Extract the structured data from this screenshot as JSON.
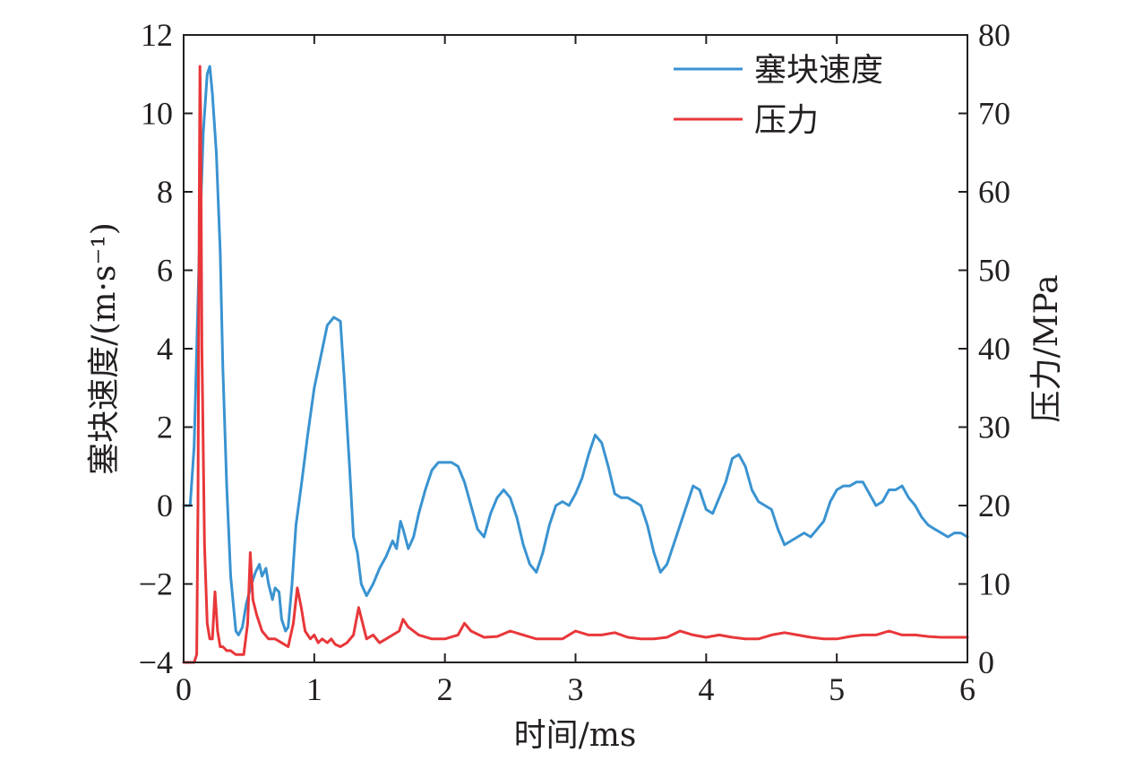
{
  "chart_data": {
    "type": "line",
    "title": "",
    "xlabel": "时间/ms",
    "ylabel_left": "塞块速度/(m·s⁻¹)",
    "ylabel_right": "压力/MPa",
    "xlim": [
      0,
      6
    ],
    "ylim_left": [
      -4,
      12
    ],
    "ylim_right": [
      0,
      80
    ],
    "x_ticks": [
      "0",
      "1",
      "2",
      "3",
      "4",
      "5",
      "6"
    ],
    "y_left_ticks": [
      "−4",
      "−2",
      "0",
      "2",
      "4",
      "6",
      "8",
      "10",
      "12"
    ],
    "y_right_ticks": [
      "0",
      "10",
      "20",
      "30",
      "40",
      "50",
      "60",
      "70",
      "80"
    ],
    "grid": false,
    "legend_position": "top-right",
    "colors": {
      "velocity": "#3a93d1",
      "pressure": "#e8373a",
      "axis": "#231f20"
    },
    "series": [
      {
        "name": "塞块速度",
        "axis": "left",
        "color": "#3a93d1",
        "x": [
          0,
          0.05,
          0.08,
          0.1,
          0.12,
          0.15,
          0.18,
          0.2,
          0.22,
          0.25,
          0.28,
          0.3,
          0.33,
          0.36,
          0.4,
          0.42,
          0.45,
          0.48,
          0.52,
          0.55,
          0.58,
          0.6,
          0.63,
          0.65,
          0.68,
          0.7,
          0.73,
          0.75,
          0.78,
          0.8,
          0.83,
          0.86,
          0.9,
          0.95,
          1.0,
          1.05,
          1.1,
          1.15,
          1.2,
          1.23,
          1.27,
          1.3,
          1.33,
          1.36,
          1.4,
          1.45,
          1.5,
          1.55,
          1.6,
          1.63,
          1.66,
          1.68,
          1.72,
          1.76,
          1.8,
          1.85,
          1.9,
          1.95,
          2.0,
          2.05,
          2.1,
          2.15,
          2.2,
          2.25,
          2.3,
          2.35,
          2.4,
          2.45,
          2.5,
          2.55,
          2.6,
          2.65,
          2.7,
          2.75,
          2.8,
          2.85,
          2.9,
          2.95,
          3.0,
          3.05,
          3.1,
          3.15,
          3.2,
          3.25,
          3.3,
          3.35,
          3.4,
          3.45,
          3.5,
          3.55,
          3.6,
          3.65,
          3.7,
          3.75,
          3.8,
          3.85,
          3.9,
          3.95,
          4.0,
          4.05,
          4.1,
          4.15,
          4.2,
          4.25,
          4.3,
          4.35,
          4.4,
          4.45,
          4.5,
          4.55,
          4.6,
          4.65,
          4.7,
          4.75,
          4.8,
          4.85,
          4.9,
          4.95,
          5.0,
          5.05,
          5.1,
          5.15,
          5.2,
          5.25,
          5.3,
          5.35,
          5.4,
          5.45,
          5.5,
          5.55,
          5.6,
          5.65,
          5.7,
          5.75,
          5.8,
          5.85,
          5.9,
          5.95,
          6.0
        ],
        "values": [
          0,
          0,
          1.5,
          4.0,
          6.5,
          9.5,
          11.0,
          11.2,
          10.5,
          9.0,
          6.5,
          3.5,
          0.5,
          -1.8,
          -3.2,
          -3.3,
          -3.1,
          -2.5,
          -2.0,
          -1.7,
          -1.5,
          -1.8,
          -1.6,
          -2.0,
          -2.4,
          -2.1,
          -2.2,
          -2.9,
          -3.2,
          -3.1,
          -2.0,
          -0.5,
          0.5,
          1.8,
          3.0,
          3.8,
          4.6,
          4.8,
          4.7,
          3.2,
          1.0,
          -0.8,
          -1.2,
          -2.0,
          -2.3,
          -2.0,
          -1.6,
          -1.3,
          -0.9,
          -1.1,
          -0.4,
          -0.6,
          -1.1,
          -0.8,
          -0.2,
          0.4,
          0.9,
          1.1,
          1.1,
          1.1,
          1.0,
          0.6,
          0.0,
          -0.6,
          -0.8,
          -0.2,
          0.2,
          0.4,
          0.2,
          -0.3,
          -1.0,
          -1.5,
          -1.7,
          -1.2,
          -0.5,
          0.0,
          0.1,
          0.0,
          0.3,
          0.7,
          1.3,
          1.8,
          1.6,
          1.0,
          0.3,
          0.2,
          0.2,
          0.1,
          0.0,
          -0.5,
          -1.2,
          -1.7,
          -1.5,
          -1.0,
          -0.5,
          0.0,
          0.5,
          0.4,
          -0.1,
          -0.2,
          0.2,
          0.6,
          1.2,
          1.3,
          1.0,
          0.4,
          0.1,
          0.0,
          -0.1,
          -0.6,
          -1.0,
          -0.9,
          -0.8,
          -0.7,
          -0.8,
          -0.6,
          -0.4,
          0.1,
          0.4,
          0.5,
          0.5,
          0.6,
          0.6,
          0.3,
          0.0,
          0.1,
          0.4,
          0.4,
          0.5,
          0.2,
          0.0,
          -0.3,
          -0.5,
          -0.6,
          -0.7,
          -0.8,
          -0.7,
          -0.7,
          -0.8
        ]
      },
      {
        "name": "压力",
        "axis": "right",
        "color": "#e8373a",
        "x": [
          0,
          0.08,
          0.1,
          0.11,
          0.12,
          0.125,
          0.13,
          0.14,
          0.16,
          0.18,
          0.2,
          0.22,
          0.24,
          0.26,
          0.28,
          0.3,
          0.33,
          0.36,
          0.4,
          0.43,
          0.46,
          0.49,
          0.51,
          0.53,
          0.56,
          0.6,
          0.65,
          0.7,
          0.75,
          0.8,
          0.84,
          0.87,
          0.9,
          0.93,
          0.97,
          1.0,
          1.03,
          1.06,
          1.1,
          1.13,
          1.16,
          1.2,
          1.25,
          1.3,
          1.34,
          1.37,
          1.4,
          1.45,
          1.5,
          1.55,
          1.6,
          1.65,
          1.68,
          1.72,
          1.8,
          1.9,
          2.0,
          2.1,
          2.15,
          2.2,
          2.3,
          2.4,
          2.5,
          2.6,
          2.7,
          2.8,
          2.9,
          3.0,
          3.1,
          3.2,
          3.3,
          3.4,
          3.5,
          3.6,
          3.7,
          3.8,
          3.9,
          4.0,
          4.1,
          4.2,
          4.3,
          4.4,
          4.5,
          4.6,
          4.7,
          4.8,
          4.9,
          5.0,
          5.1,
          5.2,
          5.3,
          5.4,
          5.5,
          5.6,
          5.7,
          5.8,
          5.9,
          6.0
        ],
        "values": [
          0,
          0,
          1,
          20,
          60,
          76,
          70,
          40,
          15,
          5,
          3,
          3,
          9,
          4,
          2,
          2,
          1.5,
          1.5,
          1,
          1,
          1,
          5,
          14,
          8,
          6,
          4,
          3,
          3,
          2.5,
          2,
          5,
          9.5,
          7,
          4,
          3,
          3.5,
          2.5,
          3,
          2.5,
          3,
          2.3,
          2,
          2.5,
          3.5,
          7,
          5,
          3,
          3.5,
          2.5,
          3,
          3.5,
          4,
          5.5,
          4.5,
          3.5,
          3.0,
          3.0,
          3.5,
          5,
          4,
          3.2,
          3.3,
          4,
          3.5,
          3,
          3.0,
          3.0,
          4.0,
          3.5,
          3.5,
          3.8,
          3.2,
          3.0,
          3.0,
          3.2,
          4.0,
          3.5,
          3.2,
          3.5,
          3.2,
          3.0,
          3.0,
          3.5,
          3.8,
          3.5,
          3.2,
          3.0,
          3.0,
          3.3,
          3.5,
          3.5,
          4.0,
          3.5,
          3.5,
          3.3,
          3.2,
          3.2,
          3.2
        ]
      }
    ]
  }
}
